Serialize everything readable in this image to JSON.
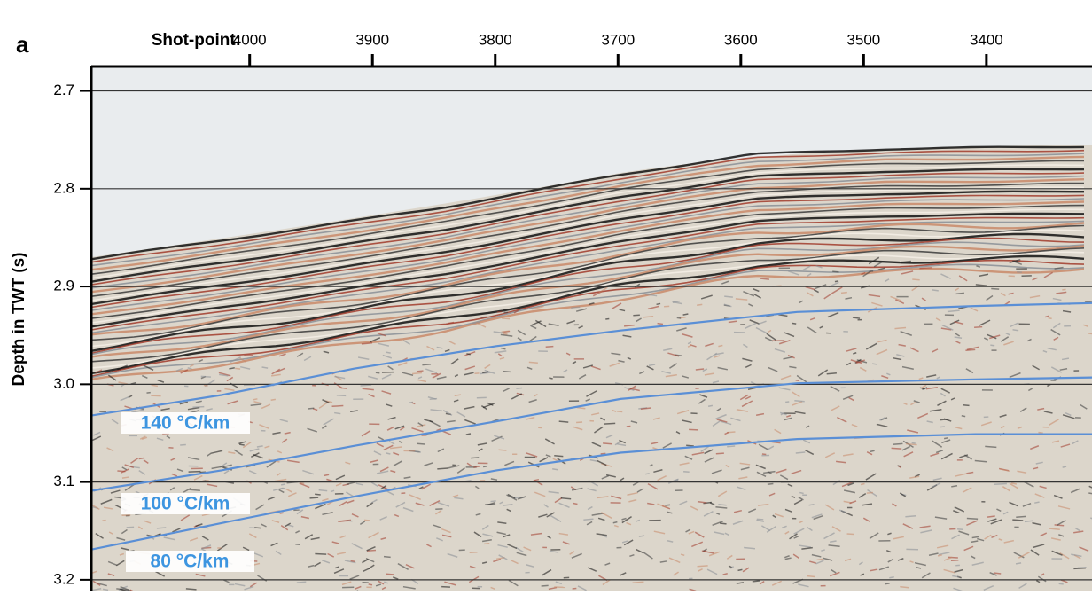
{
  "chart_data": {
    "type": "line",
    "panel_label": "a",
    "x_label": "Shot-point:",
    "y_label": "Depth in TWT (s)",
    "x": [
      4129,
      4023,
      3915,
      3799,
      3698,
      3554,
      3409,
      3314
    ],
    "series": [
      {
        "name": "140 °C/km",
        "color": "#5a8fd6",
        "values": [
          3.032,
          3.011,
          2.984,
          2.961,
          2.945,
          2.926,
          2.92,
          2.917
        ]
      },
      {
        "name": "100 °C/km",
        "color": "#5a8fd6",
        "values": [
          3.109,
          3.088,
          3.063,
          3.038,
          3.015,
          2.999,
          2.995,
          2.993
        ]
      },
      {
        "name": "80 °C/km",
        "color": "#5a8fd6",
        "values": [
          3.169,
          3.142,
          3.115,
          3.088,
          3.07,
          3.056,
          3.051,
          3.051
        ]
      }
    ],
    "xlim": [
      4129,
      3314
    ],
    "xticks": [
      4000,
      3900,
      3800,
      3700,
      3600,
      3500,
      3400
    ],
    "ylim": [
      2.675,
      3.211
    ],
    "y_inverted": true,
    "yticks": [
      2.7,
      2.8,
      2.9,
      {
        "value": 3,
        "label": "3.0"
      },
      3.1,
      3.2
    ],
    "grid": true
  }
}
